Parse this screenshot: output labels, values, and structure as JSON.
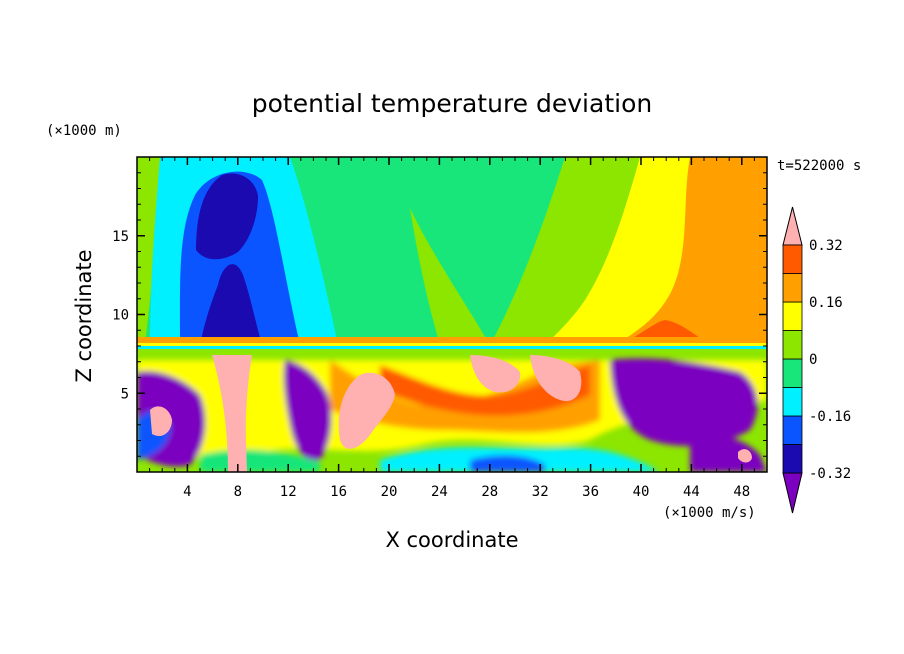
{
  "chart_data": {
    "type": "heatmap",
    "title": "potential temperature deviation",
    "xlabel": "X coordinate",
    "ylabel": "Z coordinate",
    "x_unit": "(×1000 m/s)",
    "y_unit": "(×1000 m)",
    "time_label": "t=522000 s",
    "xlim": [
      0,
      50
    ],
    "ylim": [
      0,
      20
    ],
    "x_ticks": [
      "4",
      "8",
      "12",
      "16",
      "20",
      "24",
      "28",
      "32",
      "36",
      "40",
      "44",
      "48"
    ],
    "y_ticks": [
      "5",
      "10",
      "15"
    ],
    "x_tick_values": [
      4,
      8,
      12,
      16,
      20,
      24,
      28,
      32,
      36,
      40,
      44,
      48
    ],
    "y_tick_values": [
      5,
      10,
      15
    ],
    "colorbar": {
      "labels": [
        "0.32",
        "0.16",
        "0",
        "-0.16",
        "-0.32"
      ],
      "label_values": [
        0.32,
        0.16,
        0,
        -0.16,
        -0.32
      ],
      "levels": [
        -0.4,
        -0.32,
        -0.24,
        -0.16,
        -0.08,
        0,
        0.08,
        0.16,
        0.24,
        0.32,
        0.4
      ],
      "colors": [
        "#7b00c0",
        "#1a0ab0",
        "#0a55ff",
        "#00f0ff",
        "#19e67a",
        "#8ce600",
        "#ffff00",
        "#ffa000",
        "#ff5a00",
        "#ff2020",
        "#ffb0b0"
      ]
    }
  }
}
